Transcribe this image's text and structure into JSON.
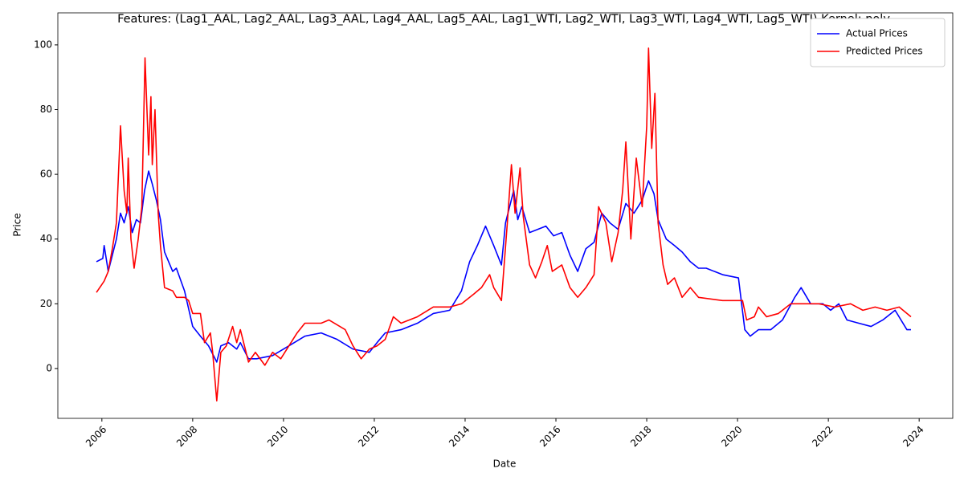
{
  "chart_data": {
    "type": "line",
    "title": "Features: (Lag1_AAL, Lag2_AAL, Lag3_AAL, Lag4_AAL, Lag5_AAL, Lag1_WTI, Lag2_WTI, Lag3_WTI, Lag4_WTI, Lag5_WTI) Kernel: poly",
    "xlabel": "Date",
    "ylabel": "Price",
    "xlim": [
      2005.03,
      2024.74
    ],
    "xticks": [
      2006,
      2008,
      2010,
      2012,
      2014,
      2016,
      2018,
      2020,
      2022,
      2024
    ],
    "ylim": [
      -15.4,
      109.9
    ],
    "yticks": [
      0,
      20,
      40,
      60,
      80,
      100
    ],
    "legend": "upper right",
    "series": [
      {
        "name": "Actual Prices",
        "color": "#0000ff",
        "x": [
          2005.88,
          2006.02,
          2006.05,
          2006.14,
          2006.23,
          2006.32,
          2006.41,
          2006.49,
          2006.58,
          2006.67,
          2006.76,
          2006.85,
          2006.94,
          2007.03,
          2007.11,
          2007.2,
          2007.29,
          2007.38,
          2007.47,
          2007.56,
          2007.64,
          2007.82,
          2008.0,
          2008.17,
          2008.35,
          2008.53,
          2008.62,
          2008.79,
          2008.97,
          2009.05,
          2009.23,
          2009.41,
          2009.76,
          2010.12,
          2010.47,
          2010.83,
          2011.18,
          2011.53,
          2011.89,
          2012.06,
          2012.24,
          2012.59,
          2012.95,
          2013.3,
          2013.66,
          2013.92,
          2014.1,
          2014.27,
          2014.45,
          2014.63,
          2014.8,
          2014.89,
          2015.07,
          2015.16,
          2015.25,
          2015.42,
          2015.6,
          2015.78,
          2015.95,
          2016.13,
          2016.31,
          2016.48,
          2016.66,
          2016.84,
          2017.01,
          2017.19,
          2017.37,
          2017.54,
          2017.72,
          2017.9,
          2018.04,
          2018.16,
          2018.25,
          2018.43,
          2018.61,
          2018.78,
          2018.96,
          2019.14,
          2019.31,
          2019.67,
          2020.02,
          2020.16,
          2020.28,
          2020.46,
          2020.73,
          2020.99,
          2021.26,
          2021.4,
          2021.61,
          2021.88,
          2022.05,
          2022.23,
          2022.41,
          2022.67,
          2022.94,
          2023.2,
          2023.47,
          2023.73,
          2023.82
        ],
        "values": [
          33,
          34,
          38,
          30,
          35,
          40,
          48,
          45,
          50,
          42,
          46,
          45,
          55,
          61,
          57,
          52,
          46,
          36,
          33,
          30,
          31,
          24,
          13,
          10,
          7,
          2,
          7,
          8,
          6,
          8,
          3,
          3,
          4,
          7,
          10,
          11,
          9,
          6,
          5,
          8,
          11,
          12,
          14,
          17,
          18,
          24,
          33,
          38,
          44,
          38,
          32,
          45,
          55,
          46,
          50,
          42,
          43,
          44,
          41,
          42,
          35,
          30,
          37,
          39,
          48,
          45,
          43,
          51,
          48,
          52,
          58,
          54,
          46,
          40,
          38,
          36,
          33,
          31,
          31,
          29,
          28,
          12,
          10,
          12,
          12,
          15,
          22,
          25,
          20,
          20,
          18,
          20,
          15,
          14,
          13,
          15,
          18,
          12,
          12
        ]
      },
      {
        "name": "Predicted Prices",
        "color": "#ff0000",
        "x": [
          2005.88,
          2006.05,
          2006.14,
          2006.23,
          2006.32,
          2006.41,
          2006.49,
          2006.55,
          2006.58,
          2006.64,
          2006.71,
          2006.8,
          2006.88,
          2006.95,
          2007.03,
          2007.08,
          2007.11,
          2007.17,
          2007.24,
          2007.29,
          2007.38,
          2007.56,
          2007.64,
          2007.82,
          2007.91,
          2008.0,
          2008.17,
          2008.26,
          2008.39,
          2008.44,
          2008.53,
          2008.62,
          2008.74,
          2008.88,
          2008.97,
          2009.05,
          2009.23,
          2009.38,
          2009.59,
          2009.76,
          2009.94,
          2010.12,
          2010.3,
          2010.47,
          2010.83,
          2011.0,
          2011.36,
          2011.53,
          2011.71,
          2011.89,
          2012.06,
          2012.24,
          2012.42,
          2012.59,
          2012.77,
          2012.95,
          2013.3,
          2013.66,
          2013.92,
          2014.19,
          2014.36,
          2014.54,
          2014.63,
          2014.8,
          2014.93,
          2015.02,
          2015.1,
          2015.21,
          2015.28,
          2015.42,
          2015.55,
          2015.69,
          2015.81,
          2015.92,
          2016.13,
          2016.31,
          2016.48,
          2016.66,
          2016.84,
          2016.94,
          2017.1,
          2017.23,
          2017.37,
          2017.47,
          2017.54,
          2017.65,
          2017.77,
          2017.9,
          2018.0,
          2018.04,
          2018.11,
          2018.18,
          2018.25,
          2018.36,
          2018.46,
          2018.61,
          2018.78,
          2018.96,
          2019.14,
          2019.67,
          2020.11,
          2020.2,
          2020.37,
          2020.46,
          2020.64,
          2020.9,
          2021.17,
          2021.43,
          2021.79,
          2022.14,
          2022.49,
          2022.76,
          2023.03,
          2023.29,
          2023.56,
          2023.82
        ],
        "values": [
          23.5,
          27,
          30,
          37,
          45,
          75,
          55,
          48,
          65,
          40,
          31,
          40,
          50,
          96,
          66,
          84,
          63,
          80,
          48,
          38,
          25,
          24,
          22,
          22,
          21,
          17,
          17,
          8,
          11,
          5,
          -10,
          5,
          7,
          13,
          8,
          12,
          2,
          5,
          1,
          5,
          3,
          7,
          11,
          14,
          14,
          15,
          12,
          7,
          3,
          6,
          7,
          9,
          16,
          14,
          15,
          16,
          19,
          19,
          20,
          23,
          25,
          29,
          25,
          21,
          45,
          63,
          48,
          62,
          47,
          32,
          28,
          33,
          38,
          30,
          32,
          25,
          22,
          25,
          29,
          50,
          45,
          33,
          42,
          55,
          70,
          40,
          65,
          50,
          75,
          99,
          68,
          85,
          45,
          32,
          26,
          28,
          22,
          25,
          22,
          21,
          21,
          15,
          16,
          19,
          16,
          17,
          20,
          20,
          20,
          19,
          20,
          18,
          19,
          18,
          19,
          16
        ]
      }
    ]
  }
}
